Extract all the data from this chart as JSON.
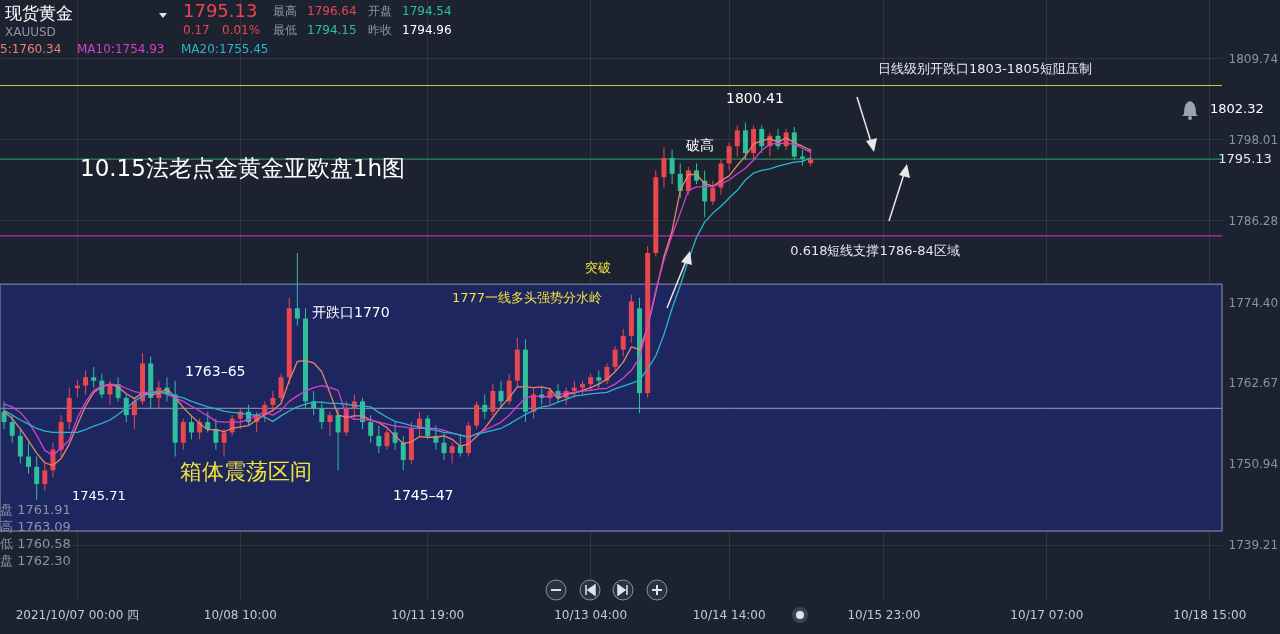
{
  "chart_data": {
    "type": "candlestick",
    "title": "现货黄金",
    "subtitle": "XAUUSD",
    "categories": [
      null,
      null,
      null,
      null,
      null,
      null,
      null,
      null,
      null,
      "2021/10/07 00:00 四",
      null,
      null,
      null,
      null,
      null,
      null,
      null,
      null,
      null,
      null,
      null,
      null,
      null,
      null,
      null,
      null,
      null,
      null,
      null,
      "10/08 10:00",
      null,
      null,
      null,
      null,
      null,
      null,
      null,
      null,
      null,
      null,
      null,
      null,
      null,
      null,
      null,
      null,
      null,
      null,
      null,
      null,
      null,
      null,
      "10/11 19:00",
      null,
      null,
      null,
      null,
      null,
      null,
      null,
      null,
      null,
      null,
      null,
      null,
      null,
      null,
      null,
      null,
      null,
      null,
      null,
      "10/13 04:00",
      null,
      null,
      null,
      null,
      null,
      null,
      null,
      null,
      null,
      null,
      null,
      null,
      null,
      null,
      null,
      null,
      "10/14 14:00",
      null,
      null,
      null,
      null,
      null,
      null,
      null,
      null,
      null,
      null,
      null,
      null,
      null,
      null,
      null,
      null,
      null,
      null,
      "10/15 23:00",
      null,
      null,
      null,
      null,
      null,
      null,
      null,
      null,
      null,
      null,
      null,
      null,
      null,
      null,
      null,
      null,
      null,
      null,
      null,
      "10/17 07:00",
      null,
      null,
      null,
      null,
      null,
      null,
      null,
      null,
      null,
      null,
      null,
      null,
      null,
      null,
      null,
      null,
      null,
      null,
      null,
      "10/18 15:00",
      null
    ],
    "ohlc": [
      [
        1758.5,
        1760,
        1756,
        1757
      ],
      [
        1757,
        1758,
        1754,
        1755
      ],
      [
        1755,
        1756,
        1751,
        1752
      ],
      [
        1752,
        1754,
        1749.5,
        1750.5
      ],
      [
        1750.5,
        1752,
        1745.71,
        1748
      ],
      [
        1748,
        1751,
        1747,
        1750
      ],
      [
        1750,
        1754,
        1749,
        1753
      ],
      [
        1753,
        1758,
        1752,
        1757
      ],
      [
        1757,
        1762,
        1756,
        1760.5
      ],
      [
        1761.91,
        1763.09,
        1760.58,
        1762.3
      ],
      [
        1762.3,
        1764.5,
        1761,
        1763.5
      ],
      [
        1763.5,
        1765,
        1762,
        1763
      ],
      [
        1763,
        1764,
        1760.5,
        1761
      ],
      [
        1761,
        1763,
        1759.5,
        1762.5
      ],
      [
        1762.5,
        1763.5,
        1760,
        1760.5
      ],
      [
        1760.5,
        1761,
        1757,
        1758
      ],
      [
        1758,
        1760.5,
        1756,
        1760
      ],
      [
        1760,
        1767,
        1759.5,
        1765.5
      ],
      [
        1765.5,
        1766.5,
        1759,
        1760.5
      ],
      [
        1760.5,
        1763,
        1759,
        1762
      ],
      [
        1762,
        1763.5,
        1760,
        1761
      ],
      [
        1761,
        1763,
        1752,
        1754
      ],
      [
        1754,
        1757.5,
        1753,
        1757
      ],
      [
        1757,
        1758,
        1754.5,
        1755.5
      ],
      [
        1755.5,
        1757.5,
        1754.5,
        1757
      ],
      [
        1757,
        1758.5,
        1755.5,
        1756
      ],
      [
        1756,
        1757.5,
        1753,
        1754
      ],
      [
        1754,
        1756,
        1752,
        1755.5
      ],
      [
        1755.5,
        1758,
        1755,
        1757.5
      ],
      [
        1757.5,
        1759,
        1756,
        1758.5
      ],
      [
        1758.5,
        1759.5,
        1756.5,
        1757
      ],
      [
        1757,
        1758.5,
        1755.5,
        1758
      ],
      [
        1758,
        1760,
        1757,
        1759.5
      ],
      [
        1759.5,
        1761.5,
        1758.5,
        1760.5
      ],
      [
        1760.5,
        1764,
        1760,
        1763.5
      ],
      [
        1763.5,
        1775,
        1762.5,
        1773.5
      ],
      [
        1773.5,
        1781.5,
        1771,
        1772
      ],
      [
        1772,
        1773.5,
        1759,
        1760
      ],
      [
        1760,
        1761.5,
        1758,
        1759
      ],
      [
        1759,
        1760,
        1756,
        1757
      ],
      [
        1757,
        1758.5,
        1755,
        1758
      ],
      [
        1758,
        1759,
        1750,
        1755.5
      ],
      [
        1755.5,
        1760,
        1755,
        1759
      ],
      [
        1759,
        1761,
        1757.5,
        1760
      ],
      [
        1760,
        1760.5,
        1756,
        1757
      ],
      [
        1757,
        1758,
        1754,
        1755
      ],
      [
        1755,
        1756.5,
        1752.5,
        1753.5
      ],
      [
        1753.5,
        1756,
        1753,
        1755.5
      ],
      [
        1755.5,
        1757,
        1753,
        1754
      ],
      [
        1754,
        1755,
        1750,
        1751.5
      ],
      [
        1751.5,
        1757,
        1751,
        1756
      ],
      [
        1756,
        1758.5,
        1755,
        1757.5
      ],
      [
        1757.5,
        1758,
        1754.5,
        1755
      ],
      [
        1755,
        1756.5,
        1753,
        1754
      ],
      [
        1754,
        1755.5,
        1751.5,
        1752.5
      ],
      [
        1752.5,
        1754,
        1751,
        1753.5
      ],
      [
        1753.5,
        1755,
        1752,
        1752.5
      ],
      [
        1752.5,
        1757,
        1752,
        1756.5
      ],
      [
        1756.5,
        1760,
        1756,
        1759.5
      ],
      [
        1759.5,
        1761,
        1757.5,
        1758.5
      ],
      [
        1758.5,
        1762.5,
        1758,
        1761.5
      ],
      [
        1761.5,
        1763,
        1759,
        1760
      ],
      [
        1760,
        1764,
        1759.5,
        1763
      ],
      [
        1763,
        1769.3,
        1762,
        1767.5
      ],
      [
        1767.5,
        1769,
        1757,
        1758.5
      ],
      [
        1758.5,
        1762,
        1757.5,
        1761
      ],
      [
        1761,
        1762,
        1759.5,
        1760.5
      ],
      [
        1760.5,
        1762,
        1759.5,
        1761.5
      ],
      [
        1761.5,
        1762.5,
        1760,
        1760.5
      ],
      [
        1760.5,
        1762,
        1759.5,
        1761.5
      ],
      [
        1761.5,
        1763,
        1760.5,
        1762
      ],
      [
        1762,
        1763,
        1761,
        1762.5
      ],
      [
        1762.5,
        1764,
        1761.5,
        1763.5
      ],
      [
        1763.5,
        1764.5,
        1762,
        1763
      ],
      [
        1763,
        1765.5,
        1762.5,
        1765
      ],
      [
        1765,
        1768,
        1764.5,
        1767.5
      ],
      [
        1767.5,
        1770.5,
        1766.5,
        1769.5
      ],
      [
        1769.5,
        1775.5,
        1768.5,
        1774.5
      ],
      [
        1773.5,
        1775,
        1758.3,
        1761.2
      ],
      [
        1761.2,
        1782.5,
        1760.5,
        1781.5
      ],
      [
        1781.5,
        1793.5,
        1781,
        1792.5
      ],
      [
        1792.5,
        1796.8,
        1791,
        1795.3
      ],
      [
        1795.3,
        1796.5,
        1791.5,
        1793
      ],
      [
        1793,
        1794.5,
        1789.5,
        1790.5
      ],
      [
        1790.5,
        1794,
        1790,
        1793.5
      ],
      [
        1793.5,
        1794.5,
        1791.5,
        1792
      ],
      [
        1792,
        1793.5,
        1786.7,
        1789
      ],
      [
        1789,
        1792,
        1788.5,
        1791
      ],
      [
        1791,
        1795,
        1790,
        1794.5
      ],
      [
        1794.5,
        1797.5,
        1793.5,
        1797
      ],
      [
        1797,
        1800,
        1795.5,
        1799.3
      ],
      [
        1799.3,
        1800.41,
        1795,
        1796
      ],
      [
        1796,
        1800,
        1795,
        1799.5
      ],
      [
        1799.5,
        1800,
        1796,
        1797
      ],
      [
        1797,
        1799,
        1795.5,
        1798.5
      ],
      [
        1798.5,
        1799.5,
        1796.5,
        1797
      ],
      [
        1797,
        1799.5,
        1796.5,
        1799
      ],
      [
        1799,
        1799.8,
        1795,
        1795.5
      ],
      [
        1795.5,
        1796.5,
        1794.2,
        1795.2
      ],
      [
        1794.54,
        1796.64,
        1794.15,
        1795.13
      ],
      null,
      null,
      null,
      null,
      null,
      null,
      null,
      null,
      null,
      null,
      null,
      null,
      null,
      null,
      null,
      null,
      null,
      null,
      null,
      null,
      null,
      null,
      null,
      null,
      null,
      null,
      null,
      null,
      null,
      null,
      null,
      null,
      null,
      null,
      null,
      null,
      null,
      null,
      null,
      null,
      null,
      null,
      null,
      null,
      null,
      null,
      null,
      null,
      null,
      null
    ],
    "series": [
      {
        "type": "line",
        "name": "5:1760.34",
        "color": "#e8836e",
        "values": [
          1758.5,
          1757.5,
          1756,
          1754.3,
          1752.5,
          1751.1,
          1750.7,
          1751.7,
          1753.8,
          1756.6,
          1759.3,
          1761.3,
          1762.1,
          1762.5,
          1762.1,
          1761.1,
          1760.4,
          1761.3,
          1760.9,
          1761.2,
          1761.8,
          1760.6,
          1759.1,
          1757.9,
          1756.8,
          1755.9,
          1755.9,
          1755.6,
          1756.1,
          1756.3,
          1756.5,
          1757.3,
          1758.1,
          1758.7,
          1759.7,
          1763,
          1765.8,
          1765.9,
          1765.6,
          1764.3,
          1761.2,
          1758,
          1757.7,
          1757.9,
          1757.9,
          1757.3,
          1756.9,
          1756.2,
          1755,
          1753.9,
          1754.1,
          1754.9,
          1754.8,
          1754.8,
          1755,
          1754.5,
          1753.5,
          1753.8,
          1754.9,
          1756.1,
          1757.7,
          1759.2,
          1760.5,
          1762.1,
          1762.1,
          1762,
          1762.1,
          1761.8,
          1760.4,
          1761,
          1761.2,
          1761.6,
          1762,
          1762.5,
          1763.2,
          1764.3,
          1765.7,
          1767.9,
          1767.5,
          1770.8,
          1775.8,
          1781,
          1784.7,
          1790.6,
          1792.9,
          1792.9,
          1791.6,
          1791.2,
          1792,
          1792.7,
          1794.2,
          1795.6,
          1797.3,
          1797.8,
          1798.1,
          1797.6,
          1798.2,
          1797.5,
          1797,
          1796.4,
          null,
          null,
          null,
          null,
          null,
          null,
          null,
          null,
          null,
          null,
          null,
          null,
          null,
          null,
          null,
          null,
          null,
          null,
          null,
          null,
          null,
          null,
          null,
          null,
          null,
          null,
          null,
          null,
          null,
          null,
          null,
          null,
          null,
          null,
          null,
          null,
          null,
          null,
          null,
          null,
          null,
          null,
          null,
          null,
          null,
          null,
          null,
          null,
          null,
          null
        ]
      },
      {
        "type": "line",
        "name": "MA10:1754.93",
        "color": "#d63fd0",
        "values": [
          1759.6,
          1759.2,
          1758.4,
          1757,
          1755.1,
          1752.9,
          1752.2,
          1753.2,
          1754.4,
          1757.6,
          1759.9,
          1761.6,
          1762.2,
          1762.5,
          1762.4,
          1761.9,
          1761.4,
          1761.2,
          1761.4,
          1761.4,
          1761,
          1760.5,
          1760,
          1759.3,
          1758.6,
          1757.9,
          1757.1,
          1757,
          1757,
          1757,
          1757.4,
          1758,
          1758.4,
          1758,
          1758.7,
          1760,
          1760.8,
          1761.5,
          1762,
          1762.3,
          1762,
          1761.6,
          1758,
          1757.4,
          1757.4,
          1757.3,
          1757,
          1756.7,
          1756.4,
          1756.3,
          1756.1,
          1756.1,
          1756.1,
          1756.1,
          1755.8,
          1755.4,
          1755.1,
          1754.8,
          1755.3,
          1755.8,
          1756.4,
          1757,
          1758,
          1759.3,
          1760.5,
          1760.8,
          1760.7,
          1760.7,
          1761,
          1761.2,
          1761.3,
          1761.5,
          1761.6,
          1761.8,
          1761.9,
          1762.5,
          1763.4,
          1764.5,
          1766.3,
          1771,
          1776.1,
          1780.5,
          1784.1,
          1787.3,
          1790.6,
          1791.1,
          1791.1,
          1791.2,
          1791.5,
          1792.1,
          1793,
          1793.8,
          1795,
          1796.4,
          1797.3,
          1797.4,
          1797.4,
          1797.3,
          1796.7,
          1796.1,
          null,
          null,
          null,
          null,
          null,
          null,
          null,
          null,
          null,
          null,
          null,
          null,
          null,
          null,
          null,
          null,
          null,
          null,
          null,
          null,
          null,
          null,
          null,
          null,
          null,
          null,
          null,
          null,
          null,
          null,
          null,
          null,
          null,
          null,
          null,
          null,
          null,
          null,
          null,
          null,
          null,
          null,
          null,
          null,
          null,
          null,
          null,
          null,
          null,
          null
        ]
      },
      {
        "type": "line",
        "name": "MA20:1755.45",
        "color": "#2bb5c8",
        "values": [
          1758.7,
          1758,
          1757.3,
          1756.7,
          1756.1,
          1755.7,
          1755.5,
          1755.5,
          1755.5,
          1755.5,
          1755.9,
          1756.4,
          1756.8,
          1757.3,
          1758.1,
          1759,
          1760,
          1760.8,
          1761.2,
          1761.4,
          1761.1,
          1760.8,
          1760.5,
          1760,
          1759.6,
          1759.2,
          1758.9,
          1758.6,
          1758.4,
          1758.3,
          1758.1,
          1758,
          1757.7,
          1757.1,
          1757.9,
          1758.6,
          1759.2,
          1759.6,
          1759.9,
          1759.9,
          1759.7,
          1759.7,
          1759.6,
          1759.4,
          1759.3,
          1759.2,
          1758.4,
          1757.7,
          1757.1,
          1756.8,
          1756.5,
          1756.3,
          1756,
          1755.8,
          1755.5,
          1755.4,
          1755.1,
          1754.8,
          1755.3,
          1755.5,
          1755.8,
          1756.1,
          1756.7,
          1757.4,
          1758.1,
          1758.7,
          1759.2,
          1759.4,
          1759.9,
          1760.3,
          1760.8,
          1760.9,
          1761.1,
          1761.2,
          1761.3,
          1761.8,
          1762.2,
          1762.6,
          1763.1,
          1764.7,
          1766.6,
          1769.7,
          1773.5,
          1776.8,
          1780.5,
          1783.8,
          1786,
          1787.3,
          1788.3,
          1789.5,
          1790.6,
          1792.1,
          1793.1,
          1793.5,
          1793.7,
          1794.1,
          1794.4,
          1794.7,
          1794.8,
          1795.3,
          null,
          null,
          null,
          null,
          null,
          null,
          null,
          null,
          null,
          null,
          null,
          null,
          null,
          null,
          null,
          null,
          null,
          null,
          null,
          null,
          null,
          null,
          null,
          null,
          null,
          null,
          null,
          null,
          null,
          null,
          null,
          null,
          null,
          null,
          null,
          null,
          null,
          null,
          null,
          null,
          null,
          null,
          null,
          null,
          null,
          null,
          null,
          null,
          null,
          null
        ]
      }
    ],
    "ylim": [
      1731.2,
      1818.2
    ],
    "yticks": [
      1739.21,
      1750.94,
      1762.67,
      {
        "value": 1774.4,
        "label": "1774.40"
      },
      1786.28,
      1798.01,
      1809.74
    ],
    "grid": true,
    "legend": "top left",
    "bands": [
      {
        "axis": "y",
        "from": 1741.2,
        "to": 1777,
        "label": "箱体震荡区间",
        "color": "#1f2766"
      }
    ],
    "ref_lines": [
      {
        "axis": "y",
        "value": 1805.8,
        "label": "日线级别开跌口1803-1805短阻压制",
        "color": "#d9c23a"
      },
      {
        "axis": "y",
        "value": 1784,
        "label": "0.618短线支撑1786-84区域",
        "color": "#b82ab8"
      },
      {
        "axis": "y",
        "value": 1795.13,
        "label": "1795.13",
        "color": "#2a8c5a"
      },
      {
        "axis": "y",
        "value": 1759,
        "color": "#7d86a0"
      }
    ],
    "annotations": [
      "1795.13",
      "0.17",
      "0.01%",
      "最高",
      "1796.64",
      "开盘",
      "1794.54",
      "最低",
      "1794.15",
      "昨收",
      "1794.96",
      "10.15法老点金黄金亚欧盘1h图",
      "1763–65",
      "开跌口1770",
      "1745–47",
      "1777一线多头强势分水岭",
      "突破",
      "破高",
      "1800.41",
      "1802.32",
      "盘 1761.91",
      "高 1763.09",
      "低 1760.58",
      "盘 1762.30",
      "1745.71"
    ]
  }
}
